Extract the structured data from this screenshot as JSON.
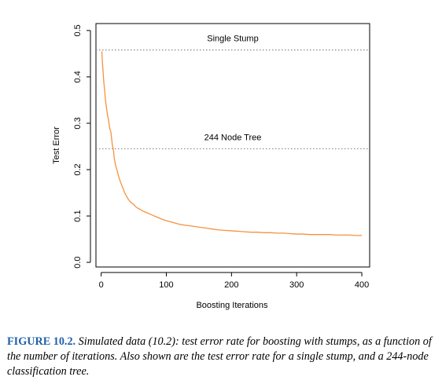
{
  "chart_data": {
    "type": "line",
    "xlabel": "Boosting Iterations",
    "ylabel": "Test Error",
    "xlim": [
      -8,
      412
    ],
    "ylim": [
      -0.01,
      0.515
    ],
    "x_ticks": [
      0,
      100,
      200,
      300,
      400
    ],
    "x_tick_labels": [
      "0",
      "100",
      "200",
      "300",
      "400"
    ],
    "y_ticks": [
      0.0,
      0.1,
      0.2,
      0.3,
      0.4,
      0.5
    ],
    "y_tick_labels": [
      "0.0",
      "0.1",
      "0.2",
      "0.3",
      "0.4",
      "0.5"
    ],
    "grid": false,
    "series": [
      {
        "color": "#f7913d",
        "x": [
          1,
          2,
          3,
          4,
          5,
          6,
          7,
          8,
          9,
          10,
          11,
          12,
          13,
          14,
          15,
          17,
          19,
          20,
          22,
          24,
          26,
          28,
          30,
          32,
          34,
          36,
          38,
          40,
          42,
          45,
          48,
          50,
          53,
          56,
          60,
          65,
          70,
          75,
          80,
          85,
          90,
          95,
          100,
          110,
          120,
          130,
          140,
          150,
          160,
          170,
          180,
          190,
          200,
          210,
          220,
          230,
          240,
          250,
          260,
          270,
          280,
          290,
          300,
          310,
          320,
          330,
          340,
          350,
          360,
          370,
          380,
          390,
          400
        ],
        "y": [
          0.455,
          0.43,
          0.41,
          0.39,
          0.375,
          0.36,
          0.345,
          0.335,
          0.325,
          0.315,
          0.31,
          0.3,
          0.29,
          0.285,
          0.28,
          0.255,
          0.24,
          0.225,
          0.21,
          0.2,
          0.19,
          0.18,
          0.172,
          0.165,
          0.158,
          0.15,
          0.145,
          0.14,
          0.135,
          0.13,
          0.127,
          0.125,
          0.12,
          0.117,
          0.114,
          0.11,
          0.107,
          0.104,
          0.101,
          0.098,
          0.095,
          0.092,
          0.09,
          0.086,
          0.082,
          0.08,
          0.078,
          0.076,
          0.074,
          0.072,
          0.07,
          0.069,
          0.068,
          0.067,
          0.066,
          0.065,
          0.065,
          0.064,
          0.064,
          0.063,
          0.063,
          0.062,
          0.061,
          0.061,
          0.06,
          0.06,
          0.06,
          0.06,
          0.059,
          0.059,
          0.059,
          0.058,
          0.058
        ]
      }
    ],
    "reference_lines": [
      {
        "label": "Single Stump",
        "y": 0.458,
        "style": "dotted",
        "color": "#888888"
      },
      {
        "label": "244 Node Tree",
        "y": 0.245,
        "style": "dotted",
        "color": "#888888"
      }
    ]
  },
  "caption": {
    "label": "FIGURE 10.2.",
    "text": "Simulated data (10.2): test error rate for boosting with stumps, as a function of the number of iterations. Also shown are the test error rate for a single stump, and a 244-node classification tree."
  }
}
